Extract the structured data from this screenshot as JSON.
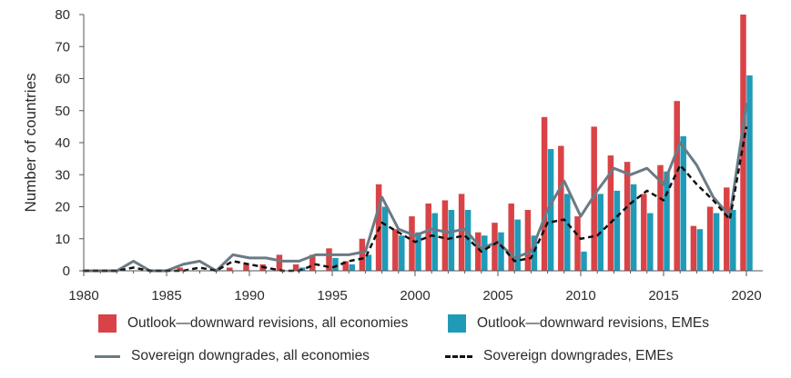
{
  "chart_data": {
    "type": "bar",
    "title": "",
    "xlabel": "",
    "ylabel": "Number of countries",
    "ylim": [
      0,
      80
    ],
    "yticks": [
      0,
      10,
      20,
      30,
      40,
      50,
      60,
      70,
      80
    ],
    "xticks": [
      1980,
      1985,
      1990,
      1995,
      2000,
      2005,
      2010,
      2015,
      2020
    ],
    "x": [
      1980,
      1981,
      1982,
      1983,
      1984,
      1985,
      1986,
      1987,
      1988,
      1989,
      1990,
      1991,
      1992,
      1993,
      1994,
      1995,
      1996,
      1997,
      1998,
      1999,
      2000,
      2001,
      2002,
      2003,
      2004,
      2005,
      2006,
      2007,
      2008,
      2009,
      2010,
      2011,
      2012,
      2013,
      2014,
      2015,
      2016,
      2017,
      2018,
      2019,
      2020
    ],
    "series": [
      {
        "name": "Outlook—downward revisions, all economies",
        "kind": "bar",
        "color": "#d94347",
        "values": [
          0,
          0,
          0,
          0,
          0,
          0,
          1,
          0,
          0,
          1,
          2,
          2,
          5,
          2,
          5,
          7,
          3,
          10,
          27,
          13,
          17,
          21,
          22,
          24,
          12,
          15,
          21,
          19,
          48,
          39,
          17,
          45,
          36,
          34,
          24,
          33,
          53,
          14,
          20,
          26,
          80
        ]
      },
      {
        "name": "Outlook—downward revisions, EMEs",
        "kind": "bar",
        "color": "#1f9bb8",
        "values": [
          0,
          0,
          0,
          0,
          0,
          0,
          0,
          0,
          0,
          0,
          0,
          0,
          0,
          1,
          0,
          4,
          2,
          5,
          20,
          11,
          12,
          18,
          19,
          19,
          11,
          12,
          16,
          11,
          38,
          24,
          6,
          24,
          25,
          27,
          18,
          31,
          42,
          13,
          18,
          19,
          61
        ]
      },
      {
        "name": "Sovereign downgrades, all economies",
        "kind": "line",
        "color": "#6b7a85",
        "values": [
          0,
          0,
          0,
          3,
          0,
          0,
          2,
          3,
          0,
          5,
          4,
          4,
          3,
          3,
          5,
          5,
          5,
          6,
          23,
          13,
          11,
          13,
          12,
          13,
          7,
          9,
          4,
          6,
          19,
          28,
          17,
          25,
          32,
          30,
          32,
          27,
          40,
          33,
          23,
          17,
          52
        ]
      },
      {
        "name": "Sovereign downgrades, EMEs",
        "kind": "dashed-line",
        "color": "#111111",
        "values": [
          0,
          0,
          0,
          1,
          0,
          0,
          0,
          1,
          0,
          3,
          2,
          1,
          0,
          0,
          2,
          1,
          3,
          4,
          15,
          12,
          9,
          11,
          10,
          11,
          6,
          9,
          3,
          4,
          15,
          16,
          10,
          11,
          16,
          21,
          25,
          22,
          33,
          27,
          22,
          16,
          45
        ]
      }
    ]
  }
}
